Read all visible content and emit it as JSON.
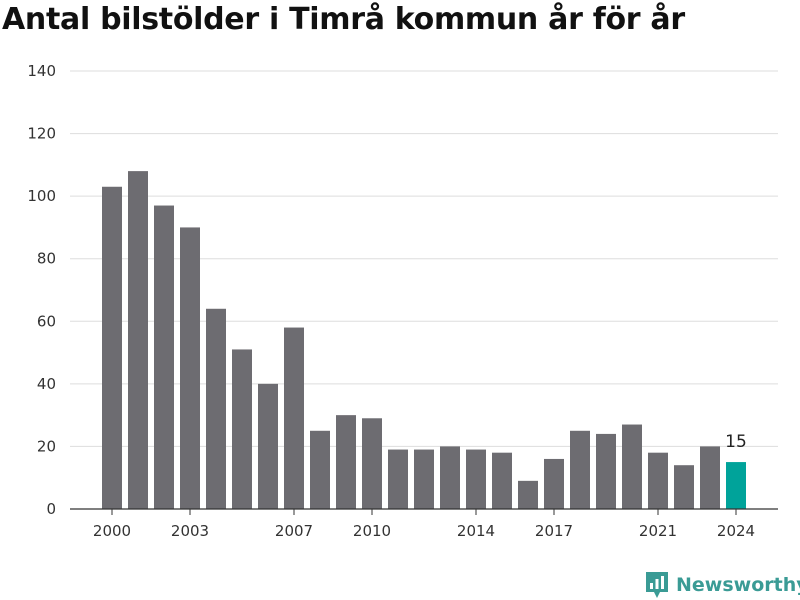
{
  "title": "Antal bilstölder i Timrå kommun år för år",
  "brand": {
    "name": "Newsworthy",
    "color": "#3a9b95",
    "icon": "newsworthy-logo-icon"
  },
  "colors": {
    "bar": "#6d6c71",
    "highlight": "#00a39a",
    "grid": "#dddddd",
    "axis": "#333333"
  },
  "chart_data": {
    "type": "bar",
    "title": "Antal bilstölder i Timrå kommun år för år",
    "xlabel": "",
    "ylabel": "",
    "categories": [
      "2000",
      "2001",
      "2002",
      "2003",
      "2004",
      "2005",
      "2006",
      "2007",
      "2008",
      "2009",
      "2010",
      "2011",
      "2012",
      "2013",
      "2014",
      "2015",
      "2016",
      "2017",
      "2018",
      "2019",
      "2020",
      "2021",
      "2022",
      "2023",
      "2024"
    ],
    "values": [
      103,
      108,
      97,
      90,
      64,
      51,
      40,
      58,
      25,
      30,
      29,
      19,
      19,
      20,
      19,
      18,
      9,
      16,
      25,
      24,
      27,
      18,
      14,
      20,
      15
    ],
    "x_tick_labels": [
      "2000",
      "2003",
      "2007",
      "2010",
      "2014",
      "2017",
      "2021",
      "2024"
    ],
    "y_ticks": [
      0,
      20,
      40,
      60,
      80,
      100,
      120,
      140
    ],
    "ylim": [
      0,
      140
    ],
    "grid": true,
    "highlight": {
      "category": "2024",
      "label": "15"
    }
  }
}
